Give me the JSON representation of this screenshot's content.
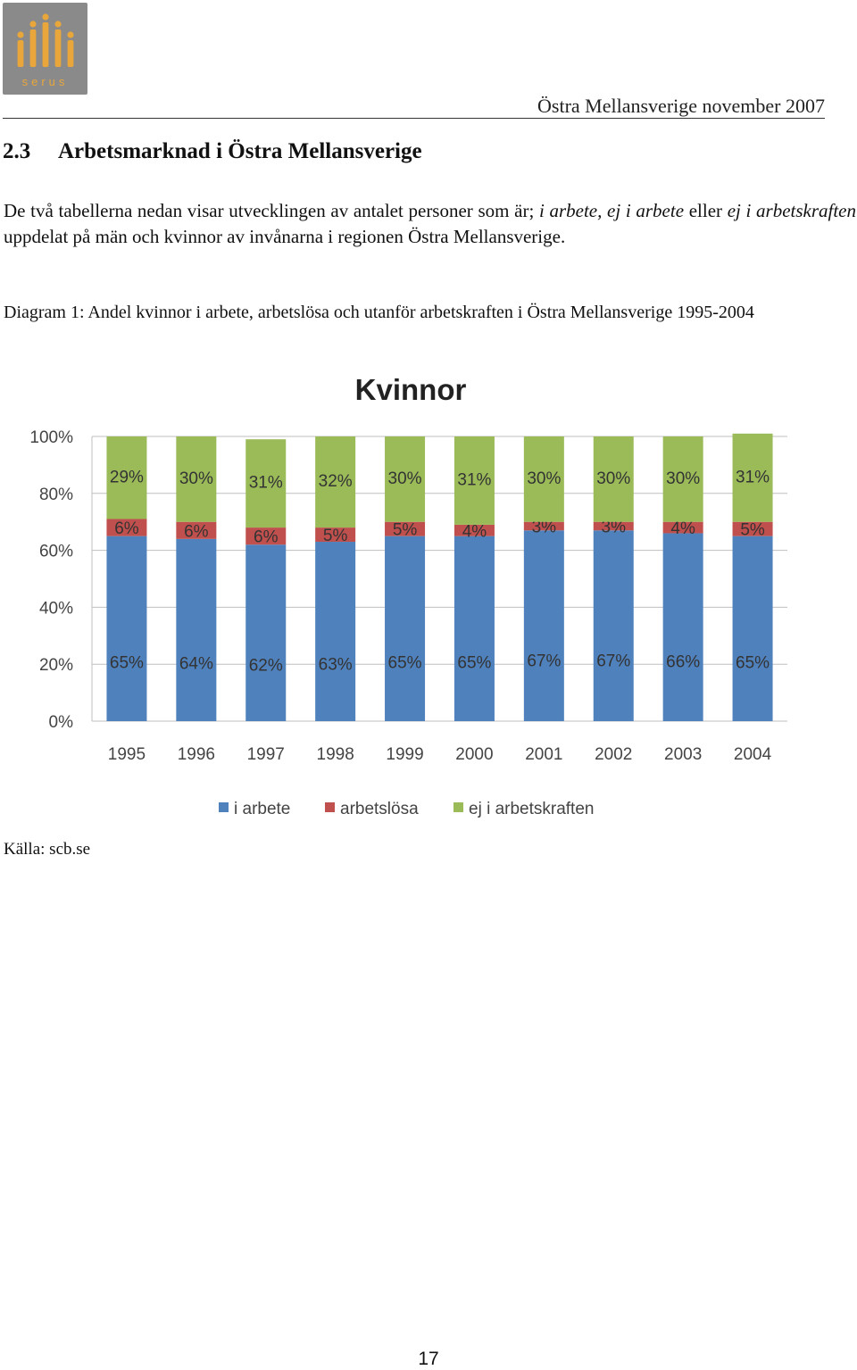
{
  "logo": {
    "name": "serus-logo",
    "text": "serus",
    "color": "#e8a63b"
  },
  "header": {
    "region_date": "Östra Mellansverige november 2007"
  },
  "section": {
    "number": "2.3",
    "title": "Arbetsmarknad i Östra Mellansverige"
  },
  "intro": {
    "part1": "De två tabellerna nedan visar utvecklingen av antalet personer som är; ",
    "em1": "i arbete, ej i arbete",
    "part2": " eller ",
    "em2": "ej i arbetskraften",
    "part3": " uppdelat på män och kvinnor av invånarna i regionen Östra Mellansverige."
  },
  "caption": "Diagram 1: Andel kvinnor i arbete, arbetslösa och utanför arbetskraften i Östra Mellansverige 1995-2004",
  "chart_data": {
    "type": "bar",
    "stacked": true,
    "title": "Kvinnor",
    "categories": [
      "1995",
      "1996",
      "1997",
      "1998",
      "1999",
      "2000",
      "2001",
      "2002",
      "2003",
      "2004"
    ],
    "series": [
      {
        "name": "i arbete",
        "color": "#4f81bd",
        "values": [
          65,
          64,
          62,
          63,
          65,
          65,
          67,
          67,
          66,
          65
        ],
        "labels": [
          "65%",
          "64%",
          "62%",
          "63%",
          "65%",
          "65%",
          "67%",
          "67%",
          "66%",
          "65%"
        ]
      },
      {
        "name": "arbetslösa",
        "color": "#c0504d",
        "values": [
          6,
          6,
          6,
          5,
          5,
          4,
          3,
          3,
          4,
          5
        ],
        "labels": [
          "6%",
          "6%",
          "6%",
          "5%",
          "5%",
          "4%",
          "3%",
          "3%",
          "4%",
          "5%"
        ]
      },
      {
        "name": "ej i arbetskraften",
        "color": "#9bbb59",
        "values": [
          29,
          30,
          31,
          32,
          30,
          31,
          30,
          30,
          30,
          31
        ],
        "labels": [
          "29%",
          "30%",
          "31%",
          "32%",
          "30%",
          "31%",
          "30%",
          "30%",
          "30%",
          "31%"
        ]
      }
    ],
    "ylim": [
      0,
      100
    ],
    "yticks": [
      "0%",
      "20%",
      "40%",
      "60%",
      "80%",
      "100%"
    ],
    "grid": true,
    "legend": "bottom"
  },
  "source": "Källa: scb.se",
  "page_number": "17"
}
